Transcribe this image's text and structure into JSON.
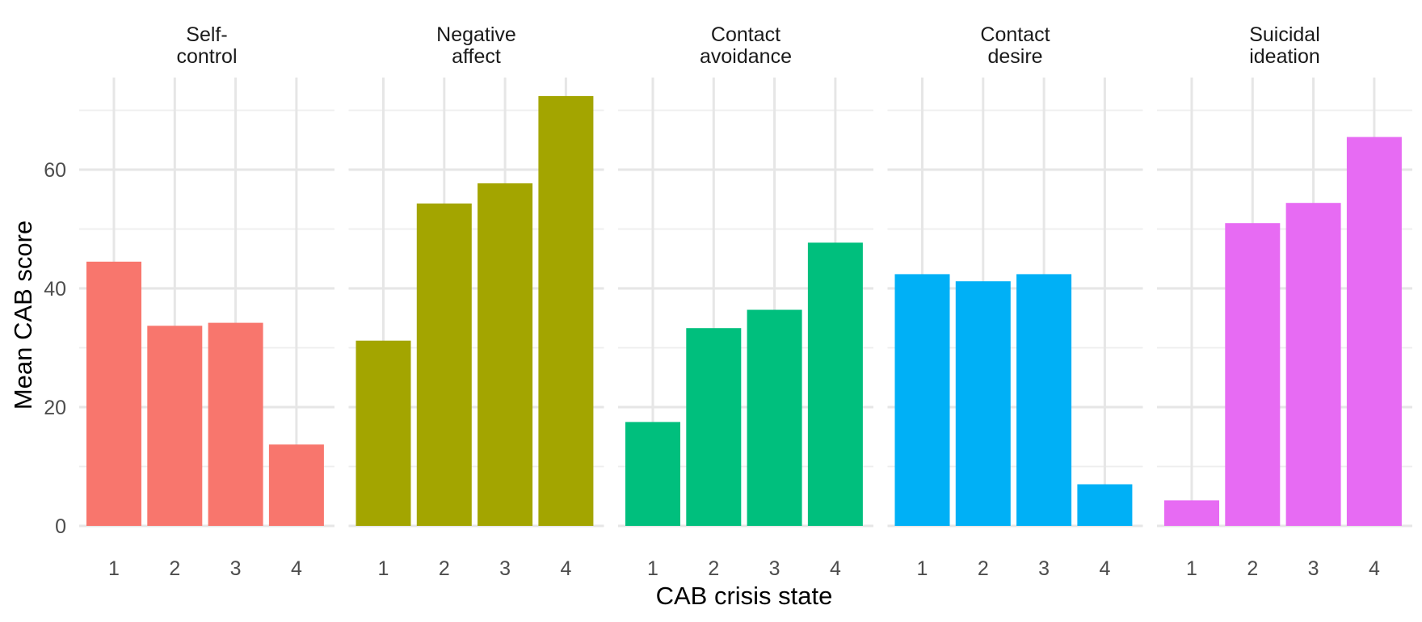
{
  "chart_data": {
    "type": "bar",
    "xlabel": "CAB crisis state",
    "ylabel": "Mean CAB score",
    "ylim": [
      0,
      74
    ],
    "y_ticks": [
      0,
      20,
      40,
      60
    ],
    "categories": [
      "1",
      "2",
      "3",
      "4"
    ],
    "legend": "none",
    "grid": true,
    "panels": [
      {
        "title_lines": [
          "Self-",
          "control"
        ],
        "color": "#F8766D",
        "values": [
          44.5,
          33.7,
          34.2,
          13.7
        ]
      },
      {
        "title_lines": [
          "Negative",
          "affect"
        ],
        "color": "#A3A500",
        "values": [
          31.2,
          54.3,
          57.7,
          72.4
        ]
      },
      {
        "title_lines": [
          "Contact",
          "avoidance"
        ],
        "color": "#00BF7D",
        "values": [
          17.5,
          33.3,
          36.4,
          47.7
        ]
      },
      {
        "title_lines": [
          "Contact",
          "desire"
        ],
        "color": "#00B0F6",
        "values": [
          42.4,
          41.2,
          42.4,
          7.0
        ]
      },
      {
        "title_lines": [
          "Suicidal",
          "ideation"
        ],
        "color": "#E76BF3",
        "values": [
          4.3,
          51.0,
          54.4,
          65.5
        ]
      }
    ]
  }
}
